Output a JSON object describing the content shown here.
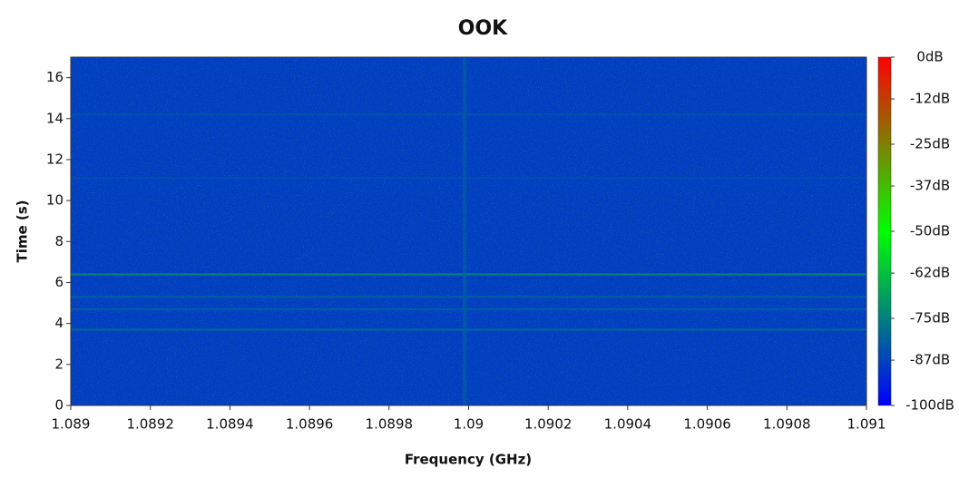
{
  "chart_data": {
    "type": "spectrogram",
    "title": "OOK",
    "x_label": "Frequency (GHz)",
    "y_label": "Time (s)",
    "xlim": [
      1.089,
      1.091
    ],
    "xticks": [
      1.089,
      1.0892,
      1.0894,
      1.0896,
      1.0898,
      1.09,
      1.0902,
      1.0904,
      1.0906,
      1.0908,
      1.091
    ],
    "ylim": [
      0,
      17
    ],
    "yticks": [
      0,
      2,
      4,
      6,
      8,
      10,
      12,
      14,
      16
    ],
    "zlim": [
      -100,
      0
    ],
    "colorbar_ticks": [
      {
        "value": 0,
        "label": "0dB"
      },
      {
        "value": -12,
        "label": "-12dB"
      },
      {
        "value": -25,
        "label": "-25dB"
      },
      {
        "value": -37,
        "label": "-37dB"
      },
      {
        "value": -50,
        "label": "-50dB"
      },
      {
        "value": -62,
        "label": "-62dB"
      },
      {
        "value": -75,
        "label": "-75dB"
      },
      {
        "value": -87,
        "label": "-87dB"
      },
      {
        "value": -100,
        "label": "-100dB"
      }
    ],
    "colormap": [
      "#0000ff",
      "#00ff00",
      "#ff0000"
    ],
    "background_level": -88,
    "horizontal_lines": [
      {
        "time": 6.4,
        "level": -72
      },
      {
        "time": 5.3,
        "level": -80
      },
      {
        "time": 4.7,
        "level": -80
      },
      {
        "time": 3.7,
        "level": -78
      },
      {
        "time": 14.2,
        "level": -83
      },
      {
        "time": 11.1,
        "level": -84
      }
    ],
    "vertical_lines": [
      {
        "frequency": 1.08999,
        "level": -80
      }
    ]
  }
}
